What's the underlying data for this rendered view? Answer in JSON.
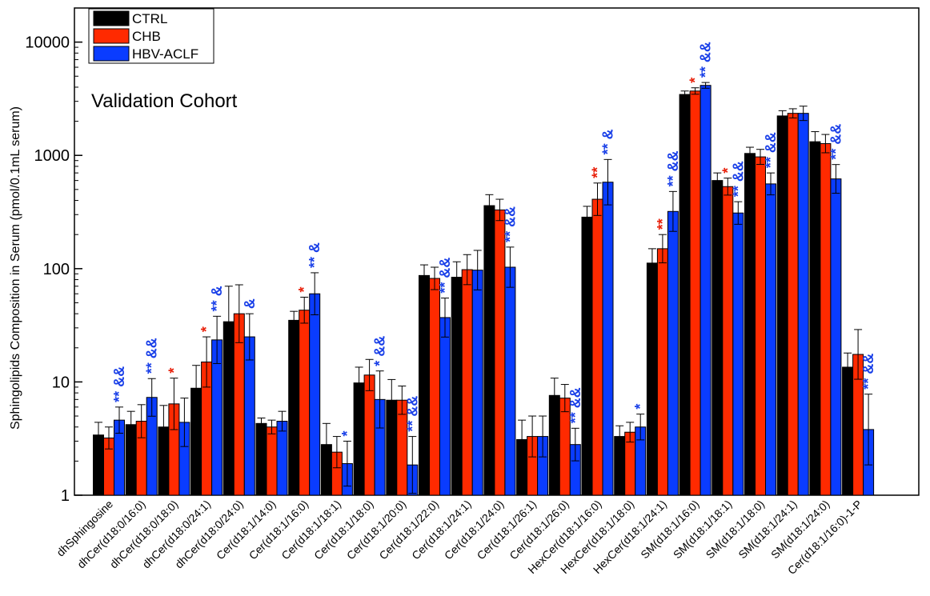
{
  "chart_data": {
    "type": "bar",
    "ylabel": "Sphingolipids Composition in Serum (pmol/0.1mL serum)",
    "yscale": "log",
    "ylim": [
      1,
      20000
    ],
    "yticks": [
      {
        "value": 1,
        "label": "1"
      },
      {
        "value": 10,
        "label": "10"
      },
      {
        "value": 100,
        "label": "100"
      },
      {
        "value": 1000,
        "label": "1000"
      },
      {
        "value": 10000,
        "label": "10000"
      }
    ],
    "annotation_title": "Validation Cohort",
    "legend_position": "top-left",
    "categories": [
      "dhSphingosine",
      "dhCer(d18:0/16:0)",
      "dhCer(d18:0/18:0)",
      "dhCer(d18:0/24:1)",
      "dhCer(d18:0/24:0)",
      "Cer(d18:1/14:0)",
      "Cer(d18:1/16:0)",
      "Cer(d18:1/18:1)",
      "Cer(d18:1/18:0)",
      "Cer(d18:1/20:0)",
      "Cer(d18:1/22:0)",
      "Cer(d18:1/24:1)",
      "Cer(d18:1/24:0)",
      "Cer(d18:1/26:1)",
      "Cer(d18:1/26:0)",
      "HexCer(d18:1/16:0)",
      "HexCer(d18:1/18:0)",
      "HexCer(d18:1/24:1)",
      "SM(d18:1/16:0)",
      "SM(d18:1/18:1)",
      "SM(d18:1/18:0)",
      "SM(d18:1/24:1)",
      "SM(d18:1/24:0)",
      "Cer(d18:1/16:0)-1-P"
    ],
    "series": [
      {
        "name": "CTRL",
        "color": "#000000",
        "values": [
          3.4,
          4.2,
          4.0,
          8.8,
          34,
          4.3,
          35,
          2.8,
          9.8,
          6.9,
          87,
          84,
          360,
          3.1,
          7.6,
          285,
          3.3,
          112,
          3450,
          600,
          1040,
          2230,
          1320,
          13.5
        ],
        "err_up": [
          4.4,
          5.5,
          6.2,
          14,
          70,
          4.8,
          42,
          4.3,
          13.5,
          10.5,
          108,
          115,
          450,
          4.6,
          10.8,
          355,
          4.1,
          150,
          3700,
          700,
          1180,
          2480,
          1620,
          18
        ]
      },
      {
        "name": "CHB",
        "color": "#ff2a00",
        "values": [
          3.2,
          4.5,
          6.4,
          15,
          40,
          4.0,
          43,
          2.4,
          11.5,
          6.9,
          82,
          98,
          330,
          3.3,
          7.2,
          410,
          3.6,
          150,
          3700,
          530,
          970,
          2350,
          1270,
          17.5
        ],
        "err_up": [
          4.0,
          6.3,
          10.8,
          25,
          72,
          4.6,
          56,
          3.3,
          15.8,
          9.2,
          103,
          133,
          410,
          5.0,
          9.5,
          570,
          4.4,
          200,
          3950,
          630,
          1130,
          2580,
          1530,
          29
        ]
      },
      {
        "name": "HBV-ACLF",
        "color": "#0a3cff",
        "values": [
          4.6,
          7.3,
          4.4,
          23.5,
          25,
          4.5,
          60,
          1.9,
          7.0,
          1.85,
          37,
          97,
          103,
          3.3,
          2.8,
          580,
          4.0,
          320,
          4150,
          310,
          560,
          2350,
          620,
          3.8
        ],
        "err_up": [
          6.0,
          10.7,
          7.2,
          38,
          40,
          5.5,
          92,
          3.0,
          12.5,
          3.3,
          55,
          145,
          155,
          5.0,
          3.9,
          920,
          5.2,
          480,
          4400,
          390,
          700,
          2720,
          830,
          7.8
        ]
      }
    ],
    "annotations": [
      {
        "category": 0,
        "series": 2,
        "text": "** &&",
        "color": "#1a40e8"
      },
      {
        "category": 1,
        "series": 2,
        "text": "** &&",
        "color": "#1a40e8"
      },
      {
        "category": 2,
        "series": 1,
        "text": "*",
        "color": "#e8200a"
      },
      {
        "category": 3,
        "series": 1,
        "text": "*",
        "color": "#e8200a"
      },
      {
        "category": 3,
        "series": 2,
        "text": "** &",
        "color": "#1a40e8"
      },
      {
        "category": 4,
        "series": 2,
        "text": "&",
        "color": "#1a40e8"
      },
      {
        "category": 6,
        "series": 1,
        "text": "*",
        "color": "#e8200a"
      },
      {
        "category": 6,
        "series": 2,
        "text": "** &",
        "color": "#1a40e8"
      },
      {
        "category": 7,
        "series": 2,
        "text": "*",
        "color": "#1a40e8"
      },
      {
        "category": 8,
        "series": 2,
        "text": "* &&",
        "color": "#1a40e8"
      },
      {
        "category": 9,
        "series": 2,
        "text": "** &&",
        "color": "#1a40e8"
      },
      {
        "category": 10,
        "series": 2,
        "text": "** &&",
        "color": "#1a40e8"
      },
      {
        "category": 12,
        "series": 2,
        "text": "** &&",
        "color": "#1a40e8"
      },
      {
        "category": 14,
        "series": 2,
        "text": "** &&",
        "color": "#1a40e8"
      },
      {
        "category": 15,
        "series": 1,
        "text": "**",
        "color": "#e8200a"
      },
      {
        "category": 15,
        "series": 2,
        "text": "** &",
        "color": "#1a40e8"
      },
      {
        "category": 16,
        "series": 2,
        "text": "*",
        "color": "#1a40e8"
      },
      {
        "category": 17,
        "series": 1,
        "text": "**",
        "color": "#e8200a"
      },
      {
        "category": 17,
        "series": 2,
        "text": "** &&",
        "color": "#1a40e8"
      },
      {
        "category": 18,
        "series": 1,
        "text": "*",
        "color": "#e8200a"
      },
      {
        "category": 18,
        "series": 2,
        "text": "** &&",
        "color": "#1a40e8"
      },
      {
        "category": 19,
        "series": 1,
        "text": "*",
        "color": "#e8200a"
      },
      {
        "category": 19,
        "series": 2,
        "text": "** &&",
        "color": "#1a40e8"
      },
      {
        "category": 20,
        "series": 2,
        "text": "** &&",
        "color": "#1a40e8"
      },
      {
        "category": 22,
        "series": 2,
        "text": "** &&",
        "color": "#1a40e8"
      },
      {
        "category": 23,
        "series": 2,
        "text": "** &&",
        "color": "#1a40e8"
      }
    ]
  }
}
